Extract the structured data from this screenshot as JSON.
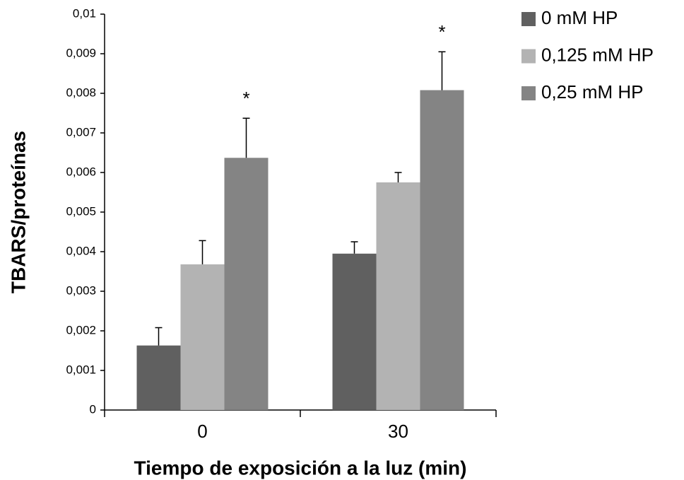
{
  "chart_data": {
    "type": "bar",
    "ylabel": "TBARS/proteínas",
    "xlabel": "Tiempo de exposición  a la luz (min)",
    "categories": [
      "0",
      "30"
    ],
    "series": [
      {
        "name": "0 mM HP",
        "color": "#606060",
        "values": [
          0.00163,
          0.00395
        ],
        "errors": [
          0.00045,
          0.0003
        ]
      },
      {
        "name": "0,125 mM HP",
        "color": "#b3b3b3",
        "values": [
          0.00368,
          0.00575
        ],
        "errors": [
          0.0006,
          0.00025
        ]
      },
      {
        "name": "0,25 mM HP",
        "color": "#848484",
        "values": [
          0.00637,
          0.00808
        ],
        "errors": [
          0.001,
          0.00097
        ]
      }
    ],
    "annotations": [
      {
        "text": "*",
        "series": 2,
        "category": 0
      },
      {
        "text": "*",
        "series": 2,
        "category": 1
      }
    ],
    "ylim": [
      0,
      0.01
    ],
    "yticks": [
      0,
      {
        "value": 0.001,
        "label": "0,001"
      },
      {
        "value": 0.002,
        "label": "0,002"
      },
      {
        "value": 0.003,
        "label": "0,003"
      },
      {
        "value": 0.004,
        "label": "0,004"
      },
      {
        "value": 0.005,
        "label": "0,005"
      },
      {
        "value": 0.006,
        "label": "0,006"
      },
      {
        "value": 0.007,
        "label": "0,007"
      },
      {
        "value": 0.008,
        "label": "0,008"
      },
      {
        "value": 0.009,
        "label": "0,009"
      },
      {
        "value": 0.01,
        "label": "0,01"
      }
    ],
    "grid": false,
    "legend": "right"
  }
}
